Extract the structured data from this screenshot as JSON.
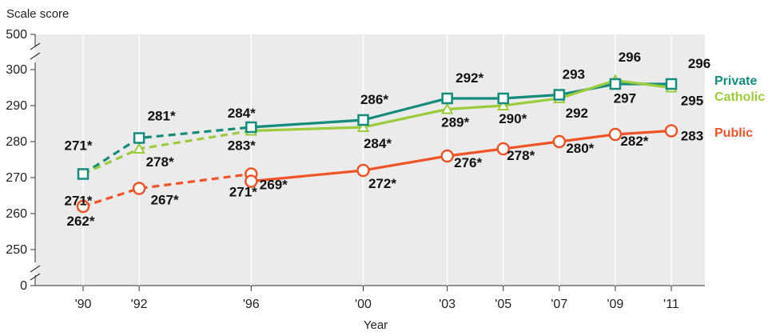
{
  "chart_data": {
    "type": "line",
    "xlabel": "Year",
    "ylabel": "Scale score",
    "categories": [
      "'90",
      "'92",
      "'96",
      "'00",
      "'03",
      "'05",
      "'07",
      "'09",
      "'11"
    ],
    "x_years": [
      1990,
      1992,
      1996,
      2000,
      2003,
      2005,
      2007,
      2009,
      2011
    ],
    "y_ticks": [
      0,
      250,
      260,
      270,
      280,
      290,
      300,
      500
    ],
    "y_tick_labels": [
      "0",
      "250",
      "260",
      "270",
      "280",
      "290",
      "300",
      "500"
    ],
    "axis_breaks": true,
    "grid": false,
    "legend_position": "right",
    "series": [
      {
        "name": "Private",
        "color": "#138c7c",
        "marker": "square",
        "values": [
          271,
          281,
          284,
          286,
          292,
          292,
          293,
          296,
          296
        ],
        "labels": [
          "271*",
          "281*",
          "284*",
          "286*",
          "292*",
          "",
          "293",
          "296",
          "296"
        ],
        "dashed_until_index": 2
      },
      {
        "name": "Catholic",
        "color": "#9ccb3c",
        "marker": "triangle",
        "values": [
          271,
          278,
          283,
          284,
          289,
          290,
          292,
          297,
          295
        ],
        "labels": [
          "271*",
          "278*",
          "283*",
          "284*",
          "289*",
          "290*",
          "292",
          "297",
          "295"
        ],
        "dashed_until_index": 2
      },
      {
        "name": "Public",
        "color": "#ef5428",
        "marker": "circle",
        "values": [
          262,
          267,
          271,
          272,
          276,
          278,
          280,
          282,
          283
        ],
        "labels": [
          "262*",
          "267*",
          "271*",
          "272*",
          "276*",
          "278*",
          "280*",
          "282*",
          "283"
        ],
        "dashed_until_index": 2,
        "extra_point": {
          "x_index": 2,
          "value": 269,
          "label": "269*"
        }
      }
    ]
  }
}
